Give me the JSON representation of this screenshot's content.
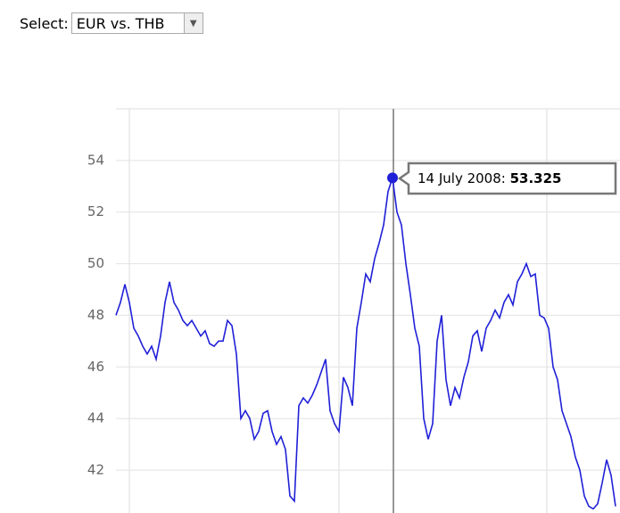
{
  "select": {
    "label": "Select:",
    "value": "EUR vs. THB"
  },
  "chart_data": {
    "type": "line",
    "color": "#2020d8",
    "values": [
      48.0,
      48.5,
      49.2,
      48.5,
      47.5,
      47.2,
      46.8,
      46.5,
      46.8,
      46.3,
      47.2,
      48.5,
      49.3,
      48.5,
      48.2,
      47.8,
      47.6,
      47.8,
      47.5,
      47.2,
      47.4,
      46.9,
      46.8,
      47.0,
      47.0,
      47.8,
      47.6,
      46.5,
      44.0,
      44.3,
      44.0,
      43.2,
      43.5,
      44.2,
      44.3,
      43.5,
      43.0,
      43.3,
      42.8,
      41.0,
      40.8,
      44.5,
      44.8,
      44.6,
      44.9,
      45.3,
      45.8,
      46.3,
      44.3,
      43.8,
      43.5,
      45.6,
      45.2,
      44.5,
      47.5,
      48.5,
      49.6,
      49.3,
      50.2,
      50.8,
      51.5,
      52.8,
      53.325,
      52.0,
      51.5,
      50.0,
      48.8,
      47.5,
      46.8,
      44.0,
      43.2,
      43.8,
      47.0,
      48.0,
      45.5,
      44.5,
      45.2,
      44.8,
      45.6,
      46.2,
      47.2,
      47.4,
      46.6,
      47.5,
      47.8,
      48.2,
      47.9,
      48.5,
      48.8,
      48.4,
      49.3,
      49.6,
      50.0,
      49.5,
      49.6,
      48.0,
      47.9,
      47.5,
      46.0,
      45.5,
      44.3,
      43.8,
      43.3,
      42.5,
      42.0,
      41.0,
      40.6,
      40.5,
      40.7,
      41.5,
      42.4,
      41.8,
      40.6
    ],
    "ylim": [
      40.34,
      56
    ],
    "yticks": [
      42,
      44,
      46,
      48,
      50,
      52,
      54
    ],
    "grid": true,
    "tooltip": {
      "label": "14 July 2008:",
      "value": 53.325
    }
  }
}
